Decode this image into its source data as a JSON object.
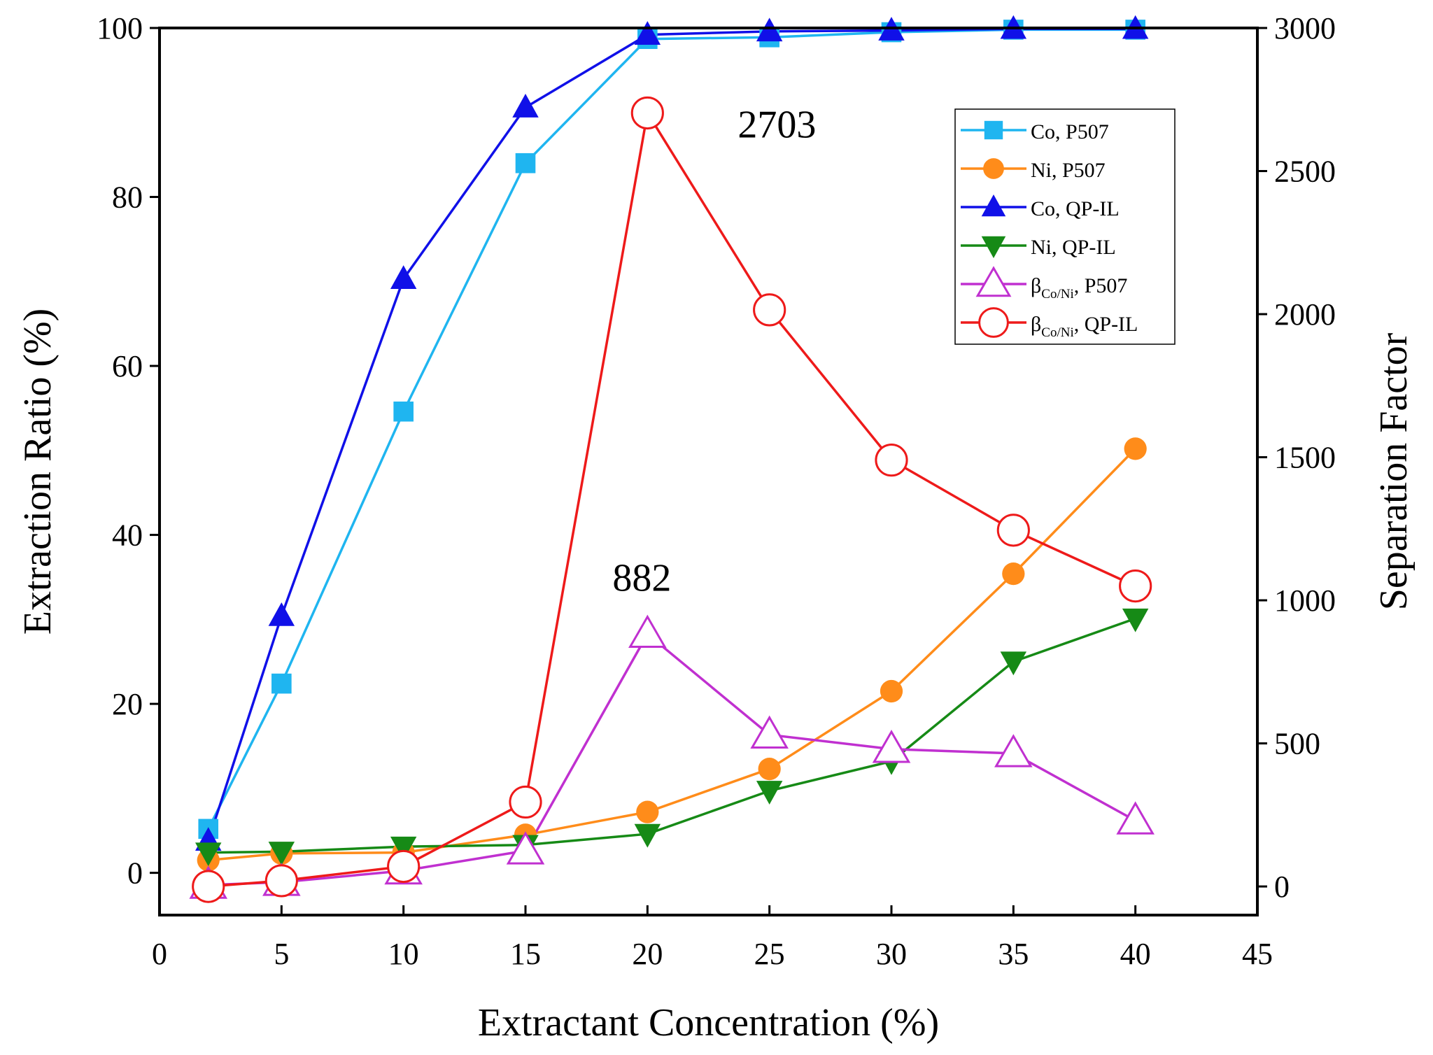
{
  "chart_data": {
    "type": "line",
    "xlabel": "Extractant Concentration (%)",
    "ylabel_left": "Extraction Ratio (%)",
    "ylabel_right": "Separation Factor",
    "xlim": [
      0,
      45
    ],
    "ylim_left": [
      -5,
      100
    ],
    "ylim_right": [
      -100,
      3000
    ],
    "x_ticks": [
      0,
      5,
      10,
      15,
      20,
      25,
      30,
      35,
      40,
      45
    ],
    "y_left_ticks": [
      0,
      20,
      40,
      60,
      80,
      100
    ],
    "y_right_ticks": [
      0,
      500,
      1000,
      1500,
      2000,
      2500,
      3000
    ],
    "x": [
      2,
      5,
      10,
      15,
      20,
      25,
      30,
      35,
      40
    ],
    "series": [
      {
        "name": "Co, P507",
        "axis": "left",
        "color": "#1fb5f0",
        "marker": "square",
        "values": [
          5.2,
          22.4,
          54.6,
          84.0,
          98.7,
          98.9,
          99.5,
          99.8,
          99.8
        ]
      },
      {
        "name": "Ni, P507",
        "axis": "left",
        "color": "#ff8c1a",
        "marker": "circle",
        "values": [
          1.5,
          2.3,
          2.4,
          4.5,
          7.2,
          12.3,
          21.5,
          35.4,
          50.2
        ]
      },
      {
        "name": "Co, QP-IL",
        "axis": "left",
        "color": "#1010e8",
        "marker": "triangle-up",
        "values": [
          3.8,
          30.4,
          70.3,
          90.6,
          99.2,
          99.6,
          99.7,
          99.9,
          99.9
        ]
      },
      {
        "name": "Ni,  QP-IL",
        "axis": "left",
        "color": "#168a16",
        "marker": "triangle-down",
        "values": [
          2.4,
          2.5,
          3.1,
          3.3,
          4.6,
          9.7,
          13.2,
          25.0,
          30.1
        ]
      },
      {
        "name": "P507",
        "axis": "right",
        "color": "#c030d0",
        "marker": "open-triangle",
        "values": [
          5,
          15,
          55,
          125,
          882,
          530,
          480,
          465,
          230
        ]
      },
      {
        "name": "QP-IL",
        "axis": "right",
        "color": "#ee1a1a",
        "marker": "open-circle",
        "values": [
          0,
          20,
          70,
          295,
          2703,
          2015,
          1490,
          1245,
          1050
        ]
      }
    ],
    "legend": {
      "placement": "top-right",
      "items": [
        {
          "label": "Co, P507"
        },
        {
          "label": "Ni, P507"
        },
        {
          "label": "Co, QP-IL"
        },
        {
          "label": "Ni,  QP-IL"
        },
        {
          "label_prefix": "β",
          "label_sub": "Co/Ni",
          "label_suffix": ", P507"
        },
        {
          "label_prefix": "β",
          "label_sub": "Co/Ni",
          "label_suffix": ", QP-IL"
        }
      ]
    },
    "annotations": [
      {
        "text": "2703",
        "x": 20,
        "y": 2703,
        "axis": "right"
      },
      {
        "text": "882",
        "x": 20,
        "y": 882,
        "axis": "right"
      }
    ]
  }
}
